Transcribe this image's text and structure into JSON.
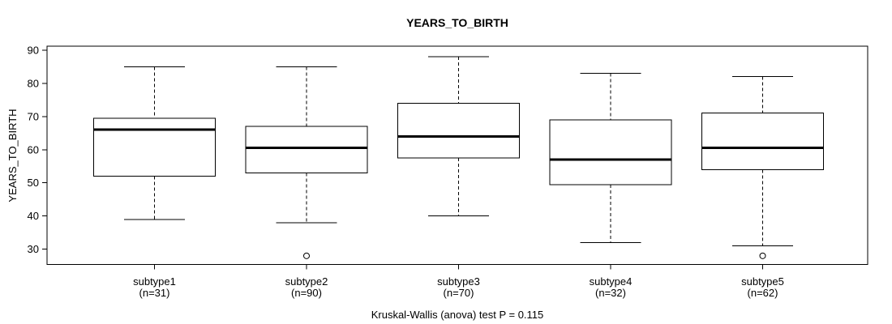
{
  "title": "YEARS_TO_BIRTH",
  "y_axis_label": "YEARS_TO_BIRTH",
  "footnote": "Kruskal-Wallis (anova) test P = 0.115",
  "chart_data": {
    "type": "boxplot",
    "title": "YEARS_TO_BIRTH",
    "xlabel": "",
    "ylabel": "YEARS_TO_BIRTH",
    "annotation": "Kruskal-Wallis (anova) test P = 0.115",
    "grid": false,
    "legend": "none",
    "ylim": [
      25.4,
      91.2
    ],
    "y_ticks": [
      30,
      40,
      50,
      60,
      70,
      80,
      90
    ],
    "categories": [
      "subtype1",
      "subtype2",
      "subtype3",
      "subtype4",
      "subtype5"
    ],
    "category_sublabels": [
      "(n=31)",
      "(n=90)",
      "(n=70)",
      "(n=32)",
      "(n=62)"
    ],
    "series": [
      {
        "name": "subtype1",
        "n": 31,
        "whisker_low": 39,
        "q1": 52,
        "median": 66,
        "q3": 69.5,
        "whisker_high": 85,
        "outliers": []
      },
      {
        "name": "subtype2",
        "n": 90,
        "whisker_low": 38,
        "q1": 53,
        "median": 60.5,
        "q3": 67,
        "whisker_high": 85,
        "outliers": [
          28
        ]
      },
      {
        "name": "subtype3",
        "n": 70,
        "whisker_low": 40,
        "q1": 57.5,
        "median": 64,
        "q3": 74,
        "whisker_high": 88,
        "outliers": []
      },
      {
        "name": "subtype4",
        "n": 32,
        "whisker_low": 32,
        "q1": 49.5,
        "median": 57,
        "q3": 69,
        "whisker_high": 83,
        "outliers": []
      },
      {
        "name": "subtype5",
        "n": 62,
        "whisker_low": 31,
        "q1": 54,
        "median": 60.5,
        "q3": 71,
        "whisker_high": 82,
        "outliers": [
          28
        ]
      }
    ],
    "colors": {
      "box_border": "#000000",
      "box_fill": "#ffffff",
      "median_line": "#000000",
      "whisker": "#000000",
      "outlier_stroke": "#000000",
      "frame": "#000000",
      "background": "#ffffff",
      "text": "#000000"
    }
  }
}
